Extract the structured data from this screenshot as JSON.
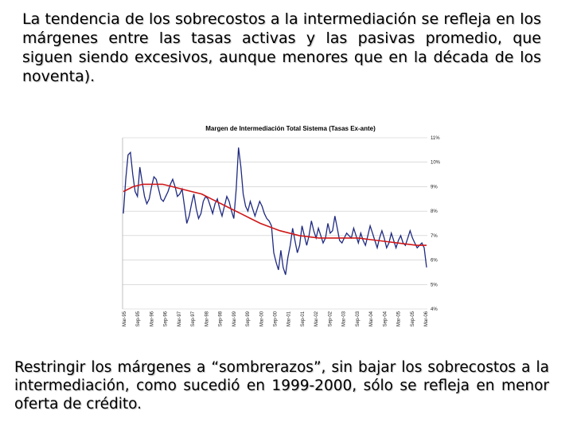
{
  "text": {
    "intro": "La tendencia de los sobrecostos a la intermediación se refleja en los márgenes entre las tasas activas y las pasivas promedio, que siguen siendo excesivos, aunque menores que en la década de los noventa).",
    "outro": "Restringir los márgenes a “sombrerazos”, sin bajar los sobrecostos a la intermediación, como sucedió en 1999-2000, sólo se refleja en menor oferta de crédito."
  },
  "colors": {
    "actual": "#1f2a80",
    "trend": "#d01818",
    "grid": "#c8c8c8"
  },
  "chart_data": {
    "type": "line",
    "title": "Margen de Intermediación Total Sistema (Tasas Ex-ante)",
    "x_tick_labels": [
      "Mar-95",
      "Sep-95",
      "Mar-96",
      "Sep-96",
      "Mar-97",
      "Sep-97",
      "Mar-98",
      "Sep-98",
      "Mar-99",
      "Sep-99",
      "Mar-00",
      "Sep-00",
      "Mar-01",
      "Sep-01",
      "Mar-02",
      "Sep-02",
      "Mar-03",
      "Sep-03",
      "Mar-04",
      "Sep-04",
      "Mar-05",
      "Sep-05",
      "Mar-06"
    ],
    "y_tick_labels": [
      "4%",
      "5%",
      "6%",
      "7%",
      "8%",
      "9%",
      "10%",
      "11%"
    ],
    "ylim": [
      4,
      11
    ],
    "y_axis_side": "right",
    "grid": "horizontal",
    "series": [
      {
        "role": "margin",
        "values": [
          7.9,
          9.3,
          10.3,
          10.4,
          9.5,
          8.8,
          8.6,
          9.8,
          9.2,
          8.6,
          8.3,
          8.5,
          9.0,
          9.4,
          9.3,
          8.9,
          8.5,
          8.4,
          8.6,
          8.8,
          9.1,
          9.3,
          9.0,
          8.6,
          8.7,
          8.9,
          8.2,
          7.5,
          7.8,
          8.3,
          8.7,
          8.1,
          7.7,
          7.9,
          8.4,
          8.6,
          8.5,
          8.2,
          7.9,
          8.3,
          8.5,
          8.1,
          7.8,
          8.2,
          8.6,
          8.4,
          8.0,
          7.7,
          8.9,
          10.6,
          9.8,
          8.7,
          8.2,
          8.0,
          8.4,
          8.1,
          7.8,
          8.1,
          8.4,
          8.2,
          7.9,
          7.7,
          7.6,
          7.4,
          6.3,
          5.9,
          5.6,
          6.4,
          5.7,
          5.4,
          6.1,
          6.6,
          7.3,
          6.8,
          6.3,
          6.6,
          7.4,
          7.0,
          6.6,
          7.0,
          7.6,
          7.2,
          6.9,
          7.3,
          7.0,
          6.7,
          6.9,
          7.5,
          7.1,
          7.2,
          7.8,
          7.3,
          6.8,
          6.7,
          6.9,
          7.1,
          7.0,
          6.9,
          7.3,
          7.0,
          6.7,
          7.1,
          6.8,
          6.6,
          7.0,
          7.4,
          7.1,
          6.8,
          6.5,
          6.9,
          7.2,
          6.9,
          6.5,
          6.7,
          7.1,
          6.8,
          6.5,
          6.8,
          7.0,
          6.7,
          6.6,
          6.9,
          7.2,
          6.9,
          6.7,
          6.5,
          6.6,
          6.7,
          6.5,
          5.7
        ]
      },
      {
        "role": "trend",
        "values": [
          8.8,
          9.0,
          9.1,
          9.1,
          9.1,
          9.0,
          8.9,
          8.8,
          8.7,
          8.5,
          8.3,
          8.1,
          7.9,
          7.7,
          7.5,
          7.35,
          7.2,
          7.1,
          7.0,
          6.95,
          6.9,
          6.9,
          6.9,
          6.9,
          6.9,
          6.85,
          6.8,
          6.75,
          6.7,
          6.65,
          6.6,
          6.6
        ]
      }
    ]
  }
}
